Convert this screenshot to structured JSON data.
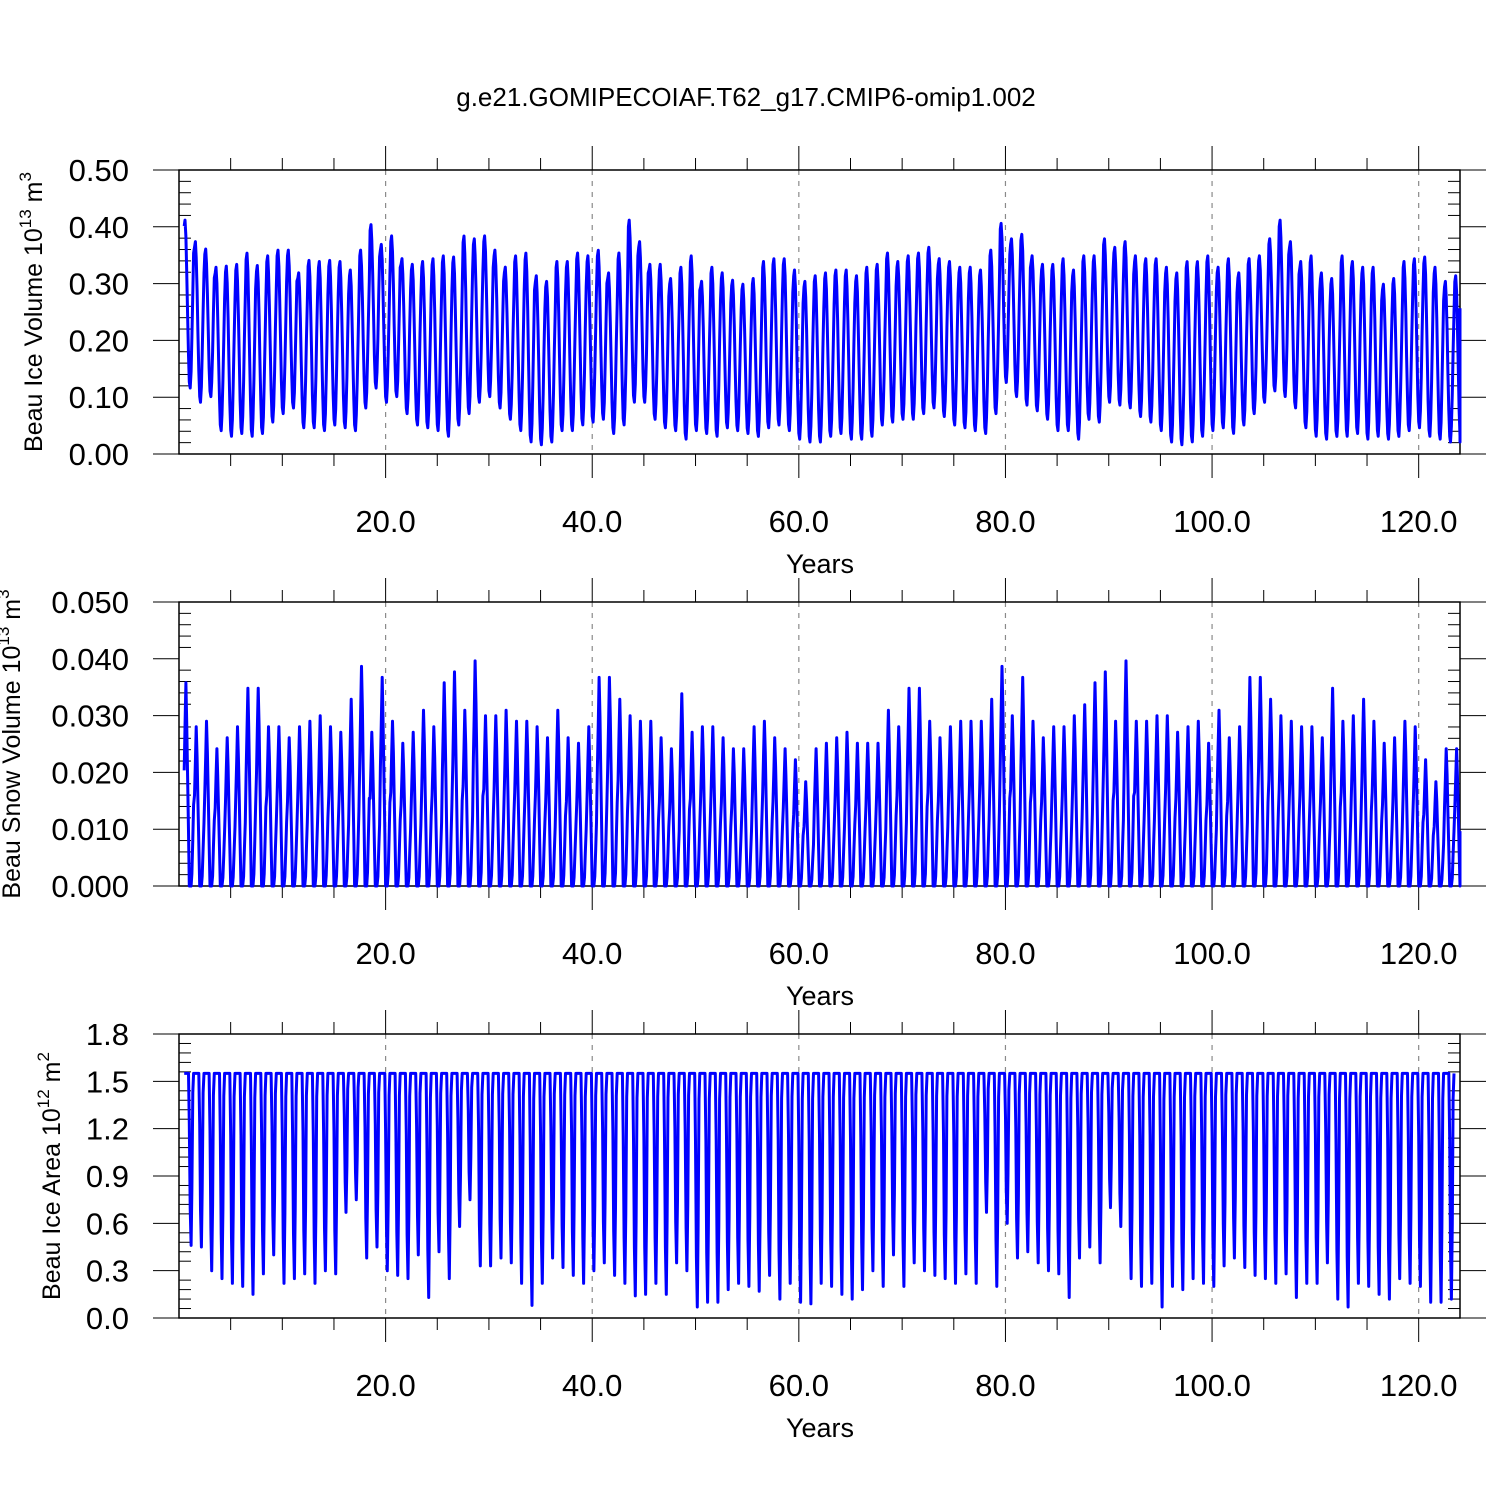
{
  "title": "g.e21.GOMIPECOIAF.T62_g17.CMIP6-omip1.002",
  "colors": {
    "line": "#0000ff",
    "axis": "#000000",
    "grid": "#8a8a8a",
    "background": "#ffffff"
  },
  "chart_data": [
    {
      "type": "line",
      "title": "g.e21.GOMIPECOIAF.T62_g17.CMIP6-omip1.002",
      "xlabel": "Years",
      "ylabel": "Beau Ice Volume 10",
      "ylabel_exp": "13",
      "ylabel_unit": " m",
      "ylabel_unit_exp": "3",
      "xlim": [
        0.0,
        124.0
      ],
      "ylim": [
        0.0,
        0.5
      ],
      "x_ticks": [
        "20.0",
        "40.0",
        "60.0",
        "80.0",
        "100.0",
        "120.0"
      ],
      "y_ticks": [
        "0.00",
        "0.10",
        "0.20",
        "0.30",
        "0.40",
        "0.50"
      ],
      "grid": "vertical dashed at major x ticks",
      "cycle": "annual",
      "series": [
        {
          "annual_max": [
            0.413,
            0.375,
            0.362,
            0.33,
            0.332,
            0.335,
            0.355,
            0.333,
            0.35,
            0.36,
            0.36,
            0.32,
            0.342,
            0.34,
            0.342,
            0.34,
            0.325,
            0.36,
            0.405,
            0.37,
            0.385,
            0.345,
            0.335,
            0.34,
            0.345,
            0.35,
            0.348,
            0.385,
            0.38,
            0.385,
            0.36,
            0.33,
            0.35,
            0.355,
            0.315,
            0.305,
            0.34,
            0.34,
            0.355,
            0.35,
            0.36,
            0.32,
            0.355,
            0.413,
            0.375,
            0.335,
            0.335,
            0.31,
            0.33,
            0.35,
            0.305,
            0.33,
            0.32,
            0.307,
            0.3,
            0.31,
            0.34,
            0.345,
            0.345,
            0.325,
            0.305,
            0.315,
            0.32,
            0.325,
            0.325,
            0.315,
            0.33,
            0.335,
            0.355,
            0.34,
            0.35,
            0.355,
            0.365,
            0.345,
            0.34,
            0.33,
            0.33,
            0.325,
            0.36,
            0.407,
            0.38,
            0.388,
            0.35,
            0.335,
            0.335,
            0.345,
            0.325,
            0.35,
            0.35,
            0.38,
            0.365,
            0.375,
            0.35,
            0.345,
            0.345,
            0.33,
            0.32,
            0.34,
            0.34,
            0.35,
            0.33,
            0.345,
            0.32,
            0.345,
            0.35,
            0.38,
            0.413,
            0.375,
            0.34,
            0.35,
            0.32,
            0.31,
            0.35,
            0.34,
            0.33,
            0.33,
            0.3,
            0.31,
            0.34,
            0.345,
            0.348,
            0.33,
            0.305,
            0.315
          ],
          "annual_min": [
            0.115,
            0.09,
            0.1,
            0.04,
            0.03,
            0.035,
            0.03,
            0.035,
            0.055,
            0.07,
            0.08,
            0.045,
            0.045,
            0.04,
            0.05,
            0.045,
            0.04,
            0.08,
            0.115,
            0.09,
            0.1,
            0.07,
            0.05,
            0.045,
            0.04,
            0.03,
            0.05,
            0.07,
            0.09,
            0.1,
            0.08,
            0.06,
            0.04,
            0.02,
            0.015,
            0.02,
            0.04,
            0.04,
            0.05,
            0.055,
            0.06,
            0.035,
            0.05,
            0.09,
            0.09,
            0.06,
            0.045,
            0.04,
            0.025,
            0.04,
            0.035,
            0.03,
            0.045,
            0.04,
            0.035,
            0.03,
            0.045,
            0.05,
            0.04,
            0.025,
            0.02,
            0.02,
            0.03,
            0.035,
            0.025,
            0.025,
            0.03,
            0.05,
            0.055,
            0.06,
            0.06,
            0.07,
            0.08,
            0.065,
            0.05,
            0.045,
            0.04,
            0.035,
            0.07,
            0.125,
            0.1,
            0.085,
            0.075,
            0.06,
            0.04,
            0.04,
            0.025,
            0.06,
            0.055,
            0.09,
            0.085,
            0.08,
            0.065,
            0.055,
            0.04,
            0.02,
            0.015,
            0.02,
            0.03,
            0.04,
            0.045,
            0.035,
            0.05,
            0.07,
            0.09,
            0.11,
            0.1,
            0.08,
            0.045,
            0.03,
            0.025,
            0.03,
            0.03,
            0.035,
            0.025,
            0.03,
            0.025,
            0.03,
            0.04,
            0.045,
            0.03,
            0.025,
            0.02,
            0.02
          ]
        }
      ]
    },
    {
      "type": "line",
      "xlabel": "Years",
      "ylabel": "Beau Snow Volume 10",
      "ylabel_exp": "13",
      "ylabel_unit": " m",
      "ylabel_unit_exp": "3",
      "xlim": [
        0.0,
        124.0
      ],
      "ylim": [
        0.0,
        0.05
      ],
      "x_ticks": [
        "20.0",
        "40.0",
        "60.0",
        "80.0",
        "100.0",
        "120.0"
      ],
      "y_ticks": [
        "0.000",
        "0.010",
        "0.020",
        "0.030",
        "0.040",
        "0.050"
      ],
      "grid": "vertical dashed at major x ticks",
      "cycle": "annual",
      "series": [
        {
          "annual_max": [
            0.037,
            0.029,
            0.03,
            0.025,
            0.027,
            0.029,
            0.036,
            0.036,
            0.029,
            0.029,
            0.027,
            0.029,
            0.03,
            0.031,
            0.029,
            0.028,
            0.034,
            0.04,
            0.028,
            0.038,
            0.03,
            0.026,
            0.028,
            0.032,
            0.029,
            0.037,
            0.039,
            0.032,
            0.041,
            0.031,
            0.031,
            0.032,
            0.03,
            0.03,
            0.029,
            0.027,
            0.032,
            0.027,
            0.026,
            0.029,
            0.038,
            0.038,
            0.034,
            0.031,
            0.03,
            0.03,
            0.027,
            0.025,
            0.035,
            0.028,
            0.029,
            0.029,
            0.027,
            0.025,
            0.025,
            0.029,
            0.03,
            0.027,
            0.025,
            0.023,
            0.019,
            0.025,
            0.026,
            0.027,
            0.028,
            0.026,
            0.026,
            0.026,
            0.032,
            0.029,
            0.036,
            0.036,
            0.03,
            0.027,
            0.029,
            0.03,
            0.03,
            0.03,
            0.034,
            0.04,
            0.031,
            0.038,
            0.03,
            0.027,
            0.029,
            0.029,
            0.031,
            0.033,
            0.037,
            0.039,
            0.03,
            0.041,
            0.03,
            0.03,
            0.031,
            0.031,
            0.028,
            0.029,
            0.03,
            0.026,
            0.032,
            0.027,
            0.029,
            0.038,
            0.038,
            0.034,
            0.031,
            0.03,
            0.029,
            0.029,
            0.027,
            0.036,
            0.03,
            0.031,
            0.034,
            0.03,
            0.026,
            0.027,
            0.03,
            0.029,
            0.023,
            0.019,
            0.025,
            0.025
          ]
        }
      ]
    },
    {
      "type": "line",
      "xlabel": "Years",
      "ylabel": "Beau Ice Area 10",
      "ylabel_exp": "12",
      "ylabel_unit": " m",
      "ylabel_unit_exp": "2",
      "xlim": [
        0.0,
        124.0
      ],
      "ylim": [
        0.0,
        1.8
      ],
      "x_ticks": [
        "20.0",
        "40.0",
        "60.0",
        "80.0",
        "100.0",
        "120.0"
      ],
      "y_ticks": [
        "0.0",
        "0.3",
        "0.6",
        "0.9",
        "1.2",
        "1.5",
        "1.8"
      ],
      "grid": "vertical dashed at major x ticks",
      "cycle": "annual",
      "series": [
        {
          "annual_max_value": 1.55,
          "annual_min": [
            0.46,
            0.45,
            0.3,
            0.25,
            0.22,
            0.2,
            0.15,
            0.28,
            0.4,
            0.22,
            0.25,
            0.28,
            0.22,
            0.3,
            0.28,
            0.67,
            0.75,
            0.38,
            0.45,
            0.3,
            0.27,
            0.25,
            0.4,
            0.13,
            0.42,
            0.25,
            0.58,
            0.75,
            0.33,
            0.33,
            0.38,
            0.35,
            0.22,
            0.08,
            0.22,
            0.38,
            0.32,
            0.27,
            0.22,
            0.3,
            0.35,
            0.27,
            0.22,
            0.14,
            0.15,
            0.22,
            0.15,
            0.35,
            0.3,
            0.07,
            0.1,
            0.1,
            0.18,
            0.22,
            0.2,
            0.17,
            0.27,
            0.12,
            0.22,
            0.1,
            0.09,
            0.22,
            0.2,
            0.15,
            0.12,
            0.18,
            0.3,
            0.2,
            0.4,
            0.2,
            0.35,
            0.3,
            0.27,
            0.25,
            0.22,
            0.28,
            0.22,
            0.67,
            0.2,
            0.6,
            0.38,
            0.42,
            0.35,
            0.3,
            0.28,
            0.13,
            0.38,
            0.45,
            0.35,
            0.7,
            0.58,
            0.25,
            0.2,
            0.22,
            0.07,
            0.2,
            0.18,
            0.25,
            0.22,
            0.2,
            0.33,
            0.38,
            0.32,
            0.27,
            0.25,
            0.22,
            0.28,
            0.13,
            0.22,
            0.22,
            0.35,
            0.12,
            0.07,
            0.22,
            0.2,
            0.15,
            0.12,
            0.25,
            0.22,
            0.2,
            0.1,
            0.1,
            0.12
          ]
        }
      ]
    }
  ]
}
